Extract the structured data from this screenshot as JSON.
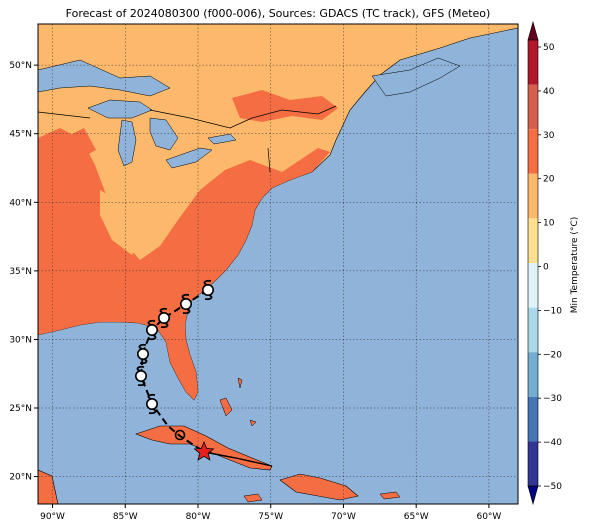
{
  "title": "Forecast of 2024080300 (f000-006), Sources: GDACS (TC track), GFS (Meteo)",
  "map": {
    "lon_ticks": [
      "90°W",
      "85°W",
      "80°W",
      "75°W",
      "70°W",
      "65°W",
      "60°W"
    ],
    "lat_ticks": [
      "50°N",
      "45°N",
      "40°N",
      "35°N",
      "30°N",
      "25°N",
      "20°N"
    ],
    "lon_range": [
      -91,
      -58
    ],
    "lat_range": [
      18,
      53
    ],
    "colors": {
      "ocean": "#8fb3d9",
      "temp_10_20": "#fdb96b",
      "temp_20_30": "#f46d43",
      "coast": "#000000"
    }
  },
  "track": {
    "current_position_icon": "red-star-icon",
    "storm_symbol_icon": "tropical-cyclone-icon"
  },
  "colorbar": {
    "label": "Min Temperature (°C)",
    "ticks": [
      "50",
      "40",
      "30",
      "20",
      "10",
      "0",
      "−10",
      "−20",
      "−30",
      "−40",
      "−50"
    ],
    "colors": [
      "#67001f",
      "#b2182b",
      "#d6604d",
      "#f46d43",
      "#fdb96b",
      "#fee090",
      "#e0f3f8",
      "#abd9e9",
      "#74add1",
      "#4575b4",
      "#313695",
      "#1a1a80"
    ]
  }
}
